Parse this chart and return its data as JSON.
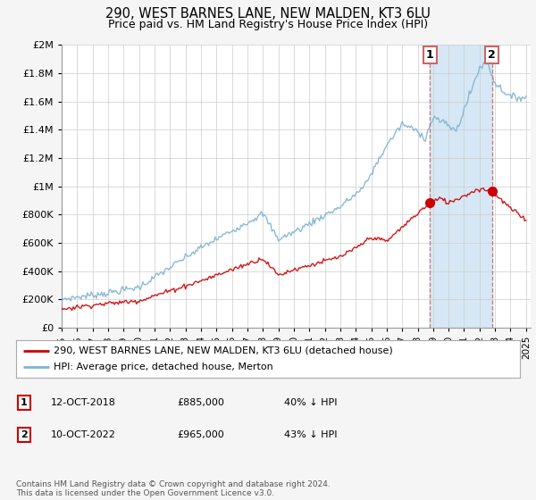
{
  "title": "290, WEST BARNES LANE, NEW MALDEN, KT3 6LU",
  "subtitle": "Price paid vs. HM Land Registry's House Price Index (HPI)",
  "legend_entries": [
    "290, WEST BARNES LANE, NEW MALDEN, KT3 6LU (detached house)",
    "HPI: Average price, detached house, Merton"
  ],
  "table_rows": [
    {
      "num": "1",
      "date": "12-OCT-2018",
      "price": "£885,000",
      "change": "40% ↓ HPI"
    },
    {
      "num": "2",
      "date": "10-OCT-2022",
      "price": "£965,000",
      "change": "43% ↓ HPI"
    }
  ],
  "footnote": "Contains HM Land Registry data © Crown copyright and database right 2024.\nThis data is licensed under the Open Government Licence v3.0.",
  "sale1_year": 2018.79,
  "sale2_year": 2022.79,
  "sale1_price": 885000,
  "sale2_price": 965000,
  "ylim": [
    0,
    2000000
  ],
  "xlim_start": 1995,
  "xlim_end": 2025,
  "red_color": "#cc0000",
  "blue_color": "#7fb3d3",
  "shade_color": "#d6e8f5",
  "dashed_color": "#cc6666",
  "background_color": "#f5f5f5",
  "plot_bg_color": "#ffffff",
  "grid_color": "#cccccc"
}
